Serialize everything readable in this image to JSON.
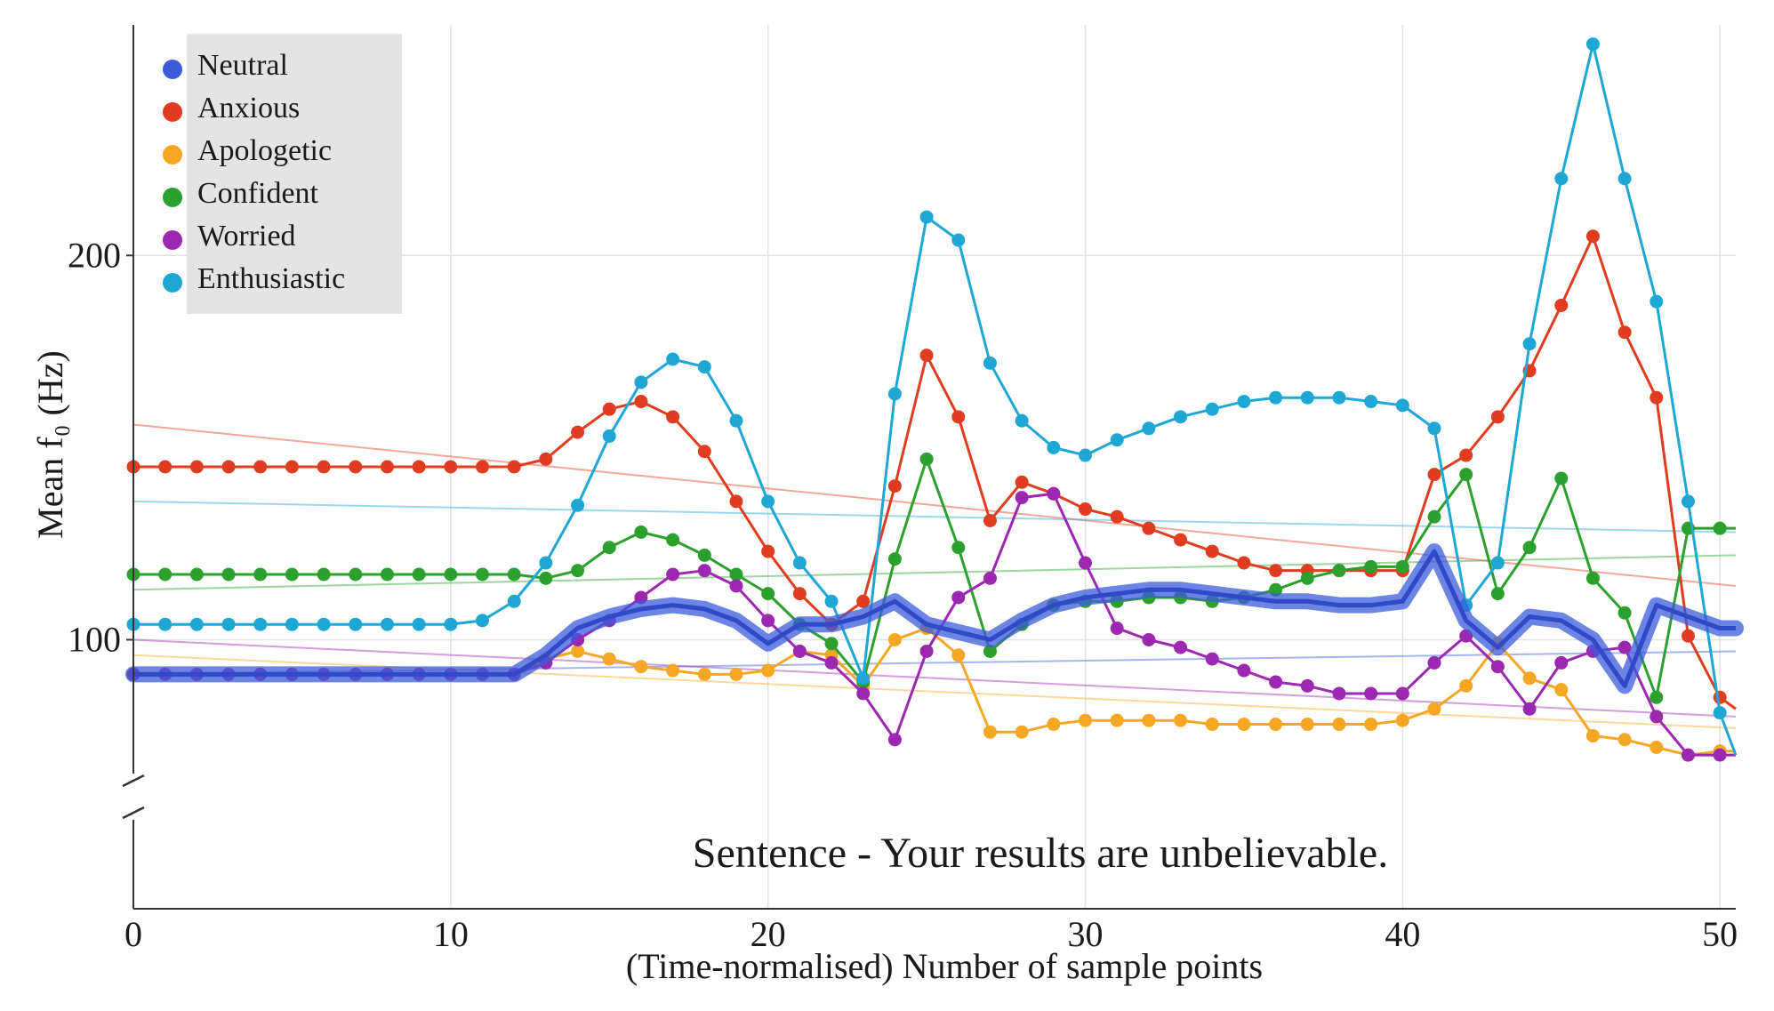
{
  "chart_data": {
    "type": "line",
    "xlabel": "(Time-normalised) Number of sample points",
    "ylabel": "Mean f₀ (Hz)",
    "annotation": "Sentence - Your results are unbelievable.",
    "xlim": [
      0,
      50.5
    ],
    "ylim": [
      30,
      260
    ],
    "x_ticks": [
      "0",
      "10",
      "20",
      "30",
      "40",
      "50"
    ],
    "x_tick_values": [
      0,
      10,
      20,
      30,
      40,
      50
    ],
    "y_ticks": [
      "100",
      "200"
    ],
    "y_tick_values": [
      100,
      200
    ],
    "y_axis_break": true,
    "grid": true,
    "legend_position": "top-left",
    "series": [
      {
        "name": "Neutral",
        "color": "#3b5bdb",
        "style": "thick-band",
        "x": [
          0,
          1,
          2,
          3,
          4,
          5,
          6,
          7,
          8,
          9,
          10,
          11,
          12,
          13,
          14,
          15,
          16,
          17,
          18,
          19,
          20,
          21,
          22,
          23,
          24,
          25,
          26,
          27,
          28,
          29,
          30,
          31,
          32,
          33,
          34,
          35,
          36,
          37,
          38,
          39,
          40,
          41,
          42,
          43,
          44,
          45,
          46,
          47,
          48,
          49,
          50,
          50.5
        ],
        "y": [
          91,
          91,
          91,
          91,
          91,
          91,
          91,
          91,
          91,
          91,
          91,
          91,
          91,
          96,
          103,
          106,
          108,
          109,
          108,
          105,
          99,
          104,
          104,
          106,
          110,
          104,
          102,
          100,
          105,
          109,
          111,
          112,
          113,
          113,
          112,
          111,
          110,
          110,
          109,
          109,
          110,
          123,
          105,
          98,
          106,
          105,
          100,
          88,
          109,
          106,
          103,
          103
        ],
        "trend": [
          91,
          97
        ]
      },
      {
        "name": "Anxious",
        "color": "#e03c1f",
        "x": [
          0,
          1,
          2,
          3,
          4,
          5,
          6,
          7,
          8,
          9,
          10,
          11,
          12,
          13,
          14,
          15,
          16,
          17,
          18,
          19,
          20,
          21,
          22,
          23,
          24,
          25,
          26,
          27,
          28,
          29,
          30,
          31,
          32,
          33,
          34,
          35,
          36,
          37,
          38,
          39,
          40,
          41,
          42,
          43,
          44,
          45,
          46,
          47,
          48,
          49,
          50,
          50.5
        ],
        "y": [
          145,
          145,
          145,
          145,
          145,
          145,
          145,
          145,
          145,
          145,
          145,
          145,
          145,
          147,
          154,
          160,
          162,
          158,
          149,
          136,
          123,
          112,
          104,
          110,
          140,
          174,
          158,
          131,
          141,
          138,
          134,
          132,
          129,
          126,
          123,
          120,
          118,
          118,
          118,
          118,
          118,
          143,
          148,
          158,
          170,
          187,
          205,
          180,
          163,
          101,
          85,
          82
        ],
        "trend": [
          156,
          114
        ]
      },
      {
        "name": "Apologetic",
        "color": "#f5a623",
        "x": [
          0,
          1,
          2,
          3,
          4,
          5,
          6,
          7,
          8,
          9,
          10,
          11,
          12,
          13,
          14,
          15,
          16,
          17,
          18,
          19,
          20,
          21,
          22,
          23,
          24,
          25,
          26,
          27,
          28,
          29,
          30,
          31,
          32,
          33,
          34,
          35,
          36,
          37,
          38,
          39,
          40,
          41,
          42,
          43,
          44,
          45,
          46,
          47,
          48,
          49,
          50,
          50.5
        ],
        "y": [
          91,
          91,
          91,
          91,
          91,
          91,
          91,
          91,
          91,
          91,
          91,
          91,
          91,
          95,
          97,
          95,
          93,
          92,
          91,
          91,
          92,
          97,
          96,
          88,
          100,
          103,
          96,
          76,
          76,
          78,
          79,
          79,
          79,
          79,
          78,
          78,
          78,
          78,
          78,
          78,
          79,
          82,
          88,
          99,
          90,
          87,
          75,
          74,
          72,
          70,
          71,
          71
        ],
        "trend": [
          96,
          77
        ]
      },
      {
        "name": "Confident",
        "color": "#2ca02c",
        "x": [
          0,
          1,
          2,
          3,
          4,
          5,
          6,
          7,
          8,
          9,
          10,
          11,
          12,
          13,
          14,
          15,
          16,
          17,
          18,
          19,
          20,
          21,
          22,
          23,
          24,
          25,
          26,
          27,
          28,
          29,
          30,
          31,
          32,
          33,
          34,
          35,
          36,
          37,
          38,
          39,
          40,
          41,
          42,
          43,
          44,
          45,
          46,
          47,
          48,
          49,
          50,
          50.5
        ],
        "y": [
          117,
          117,
          117,
          117,
          117,
          117,
          117,
          117,
          117,
          117,
          117,
          117,
          117,
          116,
          118,
          124,
          128,
          126,
          122,
          117,
          112,
          104,
          99,
          89,
          121,
          147,
          124,
          97,
          104,
          109,
          110,
          110,
          111,
          111,
          110,
          111,
          113,
          116,
          118,
          119,
          119,
          132,
          143,
          112,
          124,
          142,
          116,
          107,
          85,
          129,
          129,
          129
        ],
        "trend": [
          113,
          122
        ]
      },
      {
        "name": "Worried",
        "color": "#9c27b0",
        "x": [
          0,
          1,
          2,
          3,
          4,
          5,
          6,
          7,
          8,
          9,
          10,
          11,
          12,
          13,
          14,
          15,
          16,
          17,
          18,
          19,
          20,
          21,
          22,
          23,
          24,
          25,
          26,
          27,
          28,
          29,
          30,
          31,
          32,
          33,
          34,
          35,
          36,
          37,
          38,
          39,
          40,
          41,
          42,
          43,
          44,
          45,
          46,
          47,
          48,
          49,
          50,
          50.5
        ],
        "y": [
          91,
          91,
          91,
          91,
          91,
          91,
          91,
          91,
          91,
          91,
          91,
          91,
          91,
          94,
          100,
          105,
          111,
          117,
          118,
          114,
          105,
          97,
          94,
          86,
          74,
          97,
          111,
          116,
          137,
          138,
          120,
          103,
          100,
          98,
          95,
          92,
          89,
          88,
          86,
          86,
          86,
          94,
          101,
          93,
          82,
          94,
          97,
          98,
          80,
          70,
          70,
          70
        ],
        "trend": [
          100,
          80
        ]
      },
      {
        "name": "Enthusiastic",
        "color": "#1ea7d4",
        "x": [
          0,
          1,
          2,
          3,
          4,
          5,
          6,
          7,
          8,
          9,
          10,
          11,
          12,
          13,
          14,
          15,
          16,
          17,
          18,
          19,
          20,
          21,
          22,
          23,
          24,
          25,
          26,
          27,
          28,
          29,
          30,
          31,
          32,
          33,
          34,
          35,
          36,
          37,
          38,
          39,
          40,
          41,
          42,
          43,
          44,
          45,
          46,
          47,
          48,
          49,
          50,
          50.5
        ],
        "y": [
          104,
          104,
          104,
          104,
          104,
          104,
          104,
          104,
          104,
          104,
          104,
          105,
          110,
          120,
          135,
          153,
          167,
          173,
          171,
          157,
          136,
          120,
          110,
          90,
          164,
          210,
          204,
          172,
          157,
          150,
          148,
          152,
          155,
          158,
          160,
          162,
          163,
          163,
          163,
          162,
          161,
          155,
          109,
          120,
          177,
          220,
          255,
          220,
          188,
          136,
          81,
          70
        ],
        "trend": [
          136,
          128
        ]
      }
    ]
  }
}
